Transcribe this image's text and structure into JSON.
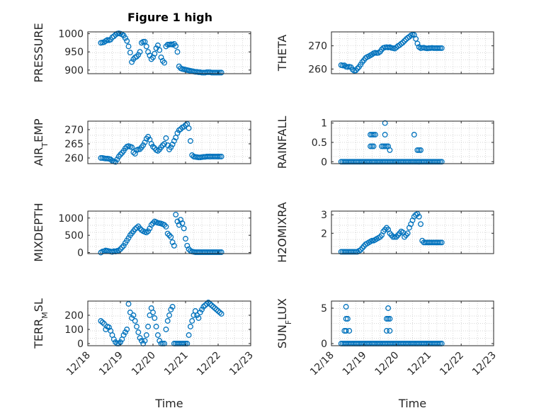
{
  "figure": {
    "title": "Figure 1 high"
  },
  "chart_data": [
    {
      "type": "scatter",
      "ylabel": "PRESSURE",
      "ylabel_sub": "",
      "ylim": [
        890,
        1005
      ],
      "yticks": [
        900,
        950,
        1000
      ],
      "xticks": [],
      "xlim": [
        0,
        5
      ],
      "grid": true,
      "x": [
        0.4,
        0.45,
        0.5,
        0.55,
        0.6,
        0.65,
        0.7,
        0.75,
        0.8,
        0.85,
        0.9,
        0.95,
        1.0,
        1.05,
        1.1,
        1.15,
        1.2,
        1.25,
        1.3,
        1.35,
        1.4,
        1.45,
        1.5,
        1.55,
        1.6,
        1.65,
        1.7,
        1.75,
        1.8,
        1.85,
        1.9,
        1.95,
        2.0,
        2.05,
        2.1,
        2.15,
        2.2,
        2.25,
        2.3,
        2.35,
        2.4,
        2.45,
        2.5,
        2.55,
        2.6,
        2.65,
        2.7,
        2.75,
        2.8,
        2.85,
        2.9,
        2.95,
        3.0,
        3.05,
        3.1,
        3.15,
        3.2,
        3.25,
        3.3,
        3.35,
        3.4,
        3.45,
        3.5,
        3.55,
        3.6,
        3.65,
        3.7,
        3.75,
        3.8,
        3.85,
        3.9,
        3.95,
        4.0,
        4.05,
        4.1
      ],
      "y": [
        975,
        976,
        977,
        980,
        983,
        982,
        984,
        990,
        993,
        997,
        1000,
        1001,
        1000,
        998,
        995,
        988,
        980,
        965,
        948,
        922,
        930,
        935,
        937,
        942,
        950,
        975,
        978,
        978,
        965,
        950,
        940,
        930,
        935,
        945,
        960,
        968,
        955,
        935,
        925,
        920,
        965,
        970,
        970,
        971,
        970,
        972,
        966,
        950,
        910,
        905,
        903,
        902,
        901,
        900,
        899,
        898,
        897,
        896,
        895,
        895,
        894,
        894,
        893,
        893,
        893,
        894,
        894,
        894,
        893,
        893,
        893,
        893,
        893,
        893,
        893
      ]
    },
    {
      "type": "scatter",
      "ylabel": "THETA",
      "ylabel_sub": "",
      "ylim": [
        258,
        276
      ],
      "yticks": [
        260,
        270
      ],
      "xticks": [],
      "xlim": [
        0,
        5
      ],
      "grid": true,
      "x": [
        0.3,
        0.35,
        0.4,
        0.45,
        0.5,
        0.55,
        0.6,
        0.65,
        0.7,
        0.75,
        0.8,
        0.85,
        0.9,
        0.95,
        1.0,
        1.05,
        1.1,
        1.15,
        1.2,
        1.25,
        1.3,
        1.35,
        1.4,
        1.45,
        1.5,
        1.55,
        1.6,
        1.65,
        1.7,
        1.75,
        1.8,
        1.85,
        1.9,
        1.95,
        2.0,
        2.05,
        2.1,
        2.15,
        2.2,
        2.25,
        2.3,
        2.35,
        2.4,
        2.45,
        2.5,
        2.55,
        2.6,
        2.65,
        2.7,
        2.75,
        2.8,
        2.85,
        2.9,
        2.95,
        3.0,
        3.05,
        3.1,
        3.15,
        3.2,
        3.25,
        3.3,
        3.35,
        3.4
      ],
      "y": [
        261.7,
        261.5,
        261.6,
        261.0,
        260.9,
        261.0,
        260.8,
        259.8,
        259.3,
        259.4,
        260.2,
        260.9,
        261.9,
        263.0,
        263.8,
        264.7,
        265.2,
        265.5,
        265.9,
        266.3,
        266.8,
        267.0,
        266.9,
        267.0,
        267.5,
        268.4,
        269.1,
        269.3,
        269.4,
        269.3,
        269.4,
        269.1,
        269.0,
        268.8,
        269.3,
        269.9,
        270.3,
        270.9,
        271.4,
        272.1,
        272.8,
        273.4,
        273.9,
        274.5,
        274.8,
        274.7,
        273.0,
        271.0,
        269.5,
        269.0,
        269.1,
        269.2,
        269.0,
        268.9,
        269.0,
        269.0,
        269.1,
        269.0,
        269.0,
        269.0,
        269.0,
        269.0,
        269.0
      ]
    },
    {
      "type": "scatter",
      "ylabel": "AIR",
      "ylabel_sub": "T",
      "ylabel_rest": "EMP",
      "ylim": [
        258,
        273
      ],
      "yticks": [
        260,
        265,
        270
      ],
      "xticks": [],
      "xlim": [
        0,
        5
      ],
      "grid": true,
      "x": [
        0.4,
        0.45,
        0.5,
        0.55,
        0.6,
        0.65,
        0.7,
        0.75,
        0.8,
        0.85,
        0.9,
        0.95,
        1.0,
        1.05,
        1.1,
        1.15,
        1.2,
        1.25,
        1.3,
        1.35,
        1.4,
        1.45,
        1.5,
        1.55,
        1.6,
        1.65,
        1.7,
        1.75,
        1.8,
        1.85,
        1.9,
        1.95,
        2.0,
        2.05,
        2.1,
        2.15,
        2.2,
        2.25,
        2.3,
        2.35,
        2.4,
        2.45,
        2.5,
        2.55,
        2.6,
        2.65,
        2.7,
        2.75,
        2.8,
        2.85,
        2.9,
        2.95,
        3.0,
        3.05,
        3.1,
        3.15,
        3.2,
        3.25,
        3.3,
        3.35,
        3.4,
        3.45,
        3.5,
        3.55,
        3.6,
        3.65,
        3.7,
        3.75,
        3.8,
        3.85,
        3.9,
        3.95,
        4.0,
        4.05,
        4.1
      ],
      "y": [
        260.0,
        260.0,
        259.9,
        259.8,
        259.8,
        259.7,
        259.5,
        259.0,
        258.8,
        258.6,
        259.5,
        260.5,
        261.2,
        261.8,
        262.5,
        263.4,
        264.0,
        264.2,
        264.0,
        263.8,
        262.0,
        261.5,
        262.8,
        263.0,
        263.1,
        263.8,
        264.5,
        265.5,
        266.8,
        267.5,
        266.5,
        265.0,
        264.0,
        263.5,
        262.8,
        262.5,
        263.0,
        263.8,
        264.5,
        265.0,
        267.0,
        264.5,
        263.0,
        263.8,
        264.8,
        266.0,
        267.2,
        268.8,
        269.8,
        270.2,
        270.8,
        271.0,
        271.6,
        272.0,
        270.5,
        266.0,
        261.0,
        260.5,
        260.4,
        260.3,
        260.2,
        260.2,
        260.3,
        260.4,
        260.4,
        260.5,
        260.5,
        260.5,
        260.5,
        260.5,
        260.5,
        260.5,
        260.5,
        260.5,
        260.5
      ]
    },
    {
      "type": "scatter",
      "ylabel": "RAINFALL",
      "ylabel_sub": "",
      "ylim": [
        -0.05,
        1.05
      ],
      "yticks": [
        0,
        0.5,
        1
      ],
      "xticks": [],
      "xlim": [
        0,
        5
      ],
      "grid": true,
      "x": [
        0.3,
        0.35,
        0.4,
        0.45,
        0.5,
        0.55,
        0.6,
        0.65,
        0.7,
        0.75,
        0.8,
        0.85,
        0.9,
        0.95,
        1.0,
        1.05,
        1.1,
        1.15,
        1.2,
        1.25,
        1.3,
        1.35,
        1.4,
        1.45,
        1.5,
        1.55,
        1.6,
        1.65,
        1.7,
        1.75,
        1.8,
        1.85,
        1.9,
        1.95,
        2.0,
        2.05,
        2.1,
        2.15,
        2.2,
        2.25,
        2.3,
        2.35,
        2.4,
        2.45,
        2.5,
        2.55,
        2.6,
        2.65,
        2.7,
        2.75,
        2.8,
        2.85,
        2.9,
        2.95,
        3.0,
        3.05,
        3.1,
        3.15,
        3.2,
        3.25,
        3.3,
        3.35,
        3.4,
        1.2,
        1.25,
        1.3,
        1.2,
        1.25,
        1.3,
        1.35,
        1.55,
        1.6,
        1.65,
        1.7,
        1.75,
        1.8,
        1.65,
        1.65,
        2.55,
        2.65,
        2.7,
        2.75,
        2.7
      ],
      "y": [
        0,
        0,
        0,
        0,
        0,
        0,
        0,
        0,
        0,
        0,
        0,
        0,
        0,
        0,
        0,
        0,
        0,
        0,
        0,
        0,
        0,
        0,
        0,
        0,
        0,
        0,
        0,
        0,
        0,
        0,
        0,
        0,
        0,
        0,
        0,
        0,
        0,
        0,
        0,
        0,
        0,
        0,
        0,
        0,
        0,
        0,
        0,
        0,
        0,
        0,
        0,
        0,
        0,
        0,
        0,
        0,
        0,
        0,
        0,
        0,
        0,
        0,
        0,
        0.4,
        0.4,
        0.4,
        0.7,
        0.7,
        0.7,
        0.7,
        0.4,
        0.4,
        0.4,
        0.4,
        0.4,
        0.3,
        0.7,
        1.0,
        0.7,
        0.3,
        0.3,
        0.3,
        0
      ]
    },
    {
      "type": "scatter",
      "ylabel": "MIXDEPTH",
      "ylabel_sub": "",
      "ylim": [
        -30,
        1200
      ],
      "yticks": [
        0,
        500,
        1000
      ],
      "xticks": [],
      "xlim": [
        0,
        5
      ],
      "grid": true,
      "x": [
        0.4,
        0.45,
        0.5,
        0.55,
        0.6,
        0.65,
        0.7,
        0.75,
        0.8,
        0.85,
        0.9,
        0.95,
        1.0,
        1.05,
        1.1,
        1.15,
        1.2,
        1.25,
        1.3,
        1.35,
        1.4,
        1.45,
        1.5,
        1.55,
        1.6,
        1.65,
        1.7,
        1.75,
        1.8,
        1.85,
        1.9,
        1.95,
        2.0,
        2.05,
        2.1,
        2.15,
        2.2,
        2.25,
        2.3,
        2.35,
        2.4,
        2.45,
        2.5,
        2.55,
        2.6,
        2.65,
        2.7,
        2.75,
        2.8,
        2.85,
        2.9,
        2.95,
        3.0,
        3.05,
        3.1,
        3.15,
        3.2,
        3.25,
        3.3,
        3.35,
        3.4,
        3.45,
        3.5,
        3.55,
        3.6,
        3.65,
        3.7,
        3.75,
        3.8,
        3.85,
        3.9,
        3.95,
        4.0,
        4.05,
        4.1
      ],
      "y": [
        0,
        30,
        40,
        60,
        50,
        40,
        30,
        20,
        40,
        30,
        50,
        60,
        100,
        150,
        200,
        280,
        350,
        420,
        500,
        560,
        620,
        680,
        720,
        760,
        700,
        650,
        620,
        600,
        580,
        620,
        700,
        800,
        850,
        900,
        880,
        860,
        850,
        840,
        820,
        800,
        750,
        550,
        500,
        450,
        300,
        200,
        1100,
        900,
        800,
        950,
        850,
        700,
        400,
        200,
        100,
        50,
        30,
        20,
        10,
        10,
        10,
        10,
        10,
        10,
        10,
        10,
        10,
        10,
        10,
        10,
        10,
        10,
        10,
        10,
        10
      ]
    },
    {
      "type": "scatter",
      "ylabel": "H2OMIXRA",
      "ylabel_sub": "",
      "ylim": [
        0.9,
        3.2
      ],
      "yticks": [
        2,
        3
      ],
      "xticks": [],
      "xlim": [
        0,
        5
      ],
      "grid": true,
      "x": [
        0.3,
        0.35,
        0.4,
        0.45,
        0.5,
        0.55,
        0.6,
        0.65,
        0.7,
        0.75,
        0.8,
        0.85,
        0.9,
        0.95,
        1.0,
        1.05,
        1.1,
        1.15,
        1.2,
        1.25,
        1.3,
        1.35,
        1.4,
        1.45,
        1.5,
        1.55,
        1.6,
        1.65,
        1.7,
        1.75,
        1.8,
        1.85,
        1.9,
        1.95,
        2.0,
        2.05,
        2.1,
        2.15,
        2.2,
        2.25,
        2.3,
        2.35,
        2.4,
        2.45,
        2.5,
        2.55,
        2.6,
        2.65,
        2.7,
        2.75,
        2.8,
        2.85,
        2.9,
        2.95,
        3.0,
        3.05,
        3.1,
        3.15,
        3.2,
        3.25,
        3.3,
        3.35,
        3.4
      ],
      "y": [
        1.0,
        1.0,
        1.0,
        1.0,
        1.0,
        1.0,
        1.0,
        1.0,
        1.0,
        1.0,
        1.0,
        1.05,
        1.1,
        1.2,
        1.3,
        1.4,
        1.45,
        1.5,
        1.55,
        1.6,
        1.6,
        1.65,
        1.7,
        1.75,
        1.8,
        1.9,
        2.1,
        2.2,
        2.3,
        2.2,
        2.0,
        1.9,
        1.8,
        1.8,
        1.8,
        1.9,
        2.0,
        2.1,
        2.05,
        1.8,
        1.9,
        2.0,
        2.3,
        2.5,
        2.7,
        2.9,
        3.0,
        3.05,
        2.9,
        2.5,
        1.6,
        1.5,
        1.5,
        1.5,
        1.5,
        1.5,
        1.5,
        1.5,
        1.5,
        1.5,
        1.5,
        1.5,
        1.5
      ]
    },
    {
      "type": "scatter",
      "ylabel": "TERR",
      "ylabel_sub": "M",
      "ylabel_rest": "SL",
      "ylim": [
        -15,
        300
      ],
      "yticks": [
        0,
        100,
        200
      ],
      "xticks": [
        "12/18",
        "12/19",
        "12/20",
        "12/21",
        "12/22",
        "12/23"
      ],
      "xlim": [
        0,
        5
      ],
      "xlabel": "Time",
      "grid": true,
      "x": [
        0.4,
        0.45,
        0.5,
        0.55,
        0.6,
        0.65,
        0.7,
        0.75,
        0.8,
        0.85,
        0.9,
        0.95,
        1.0,
        1.05,
        1.1,
        1.15,
        1.2,
        1.25,
        1.3,
        1.35,
        1.4,
        1.45,
        1.5,
        1.55,
        1.6,
        1.65,
        1.7,
        1.75,
        1.8,
        1.85,
        1.9,
        1.95,
        2.0,
        2.05,
        2.1,
        2.15,
        2.2,
        2.25,
        2.3,
        2.35,
        2.4,
        2.45,
        2.5,
        2.55,
        2.6,
        2.65,
        2.7,
        2.75,
        2.8,
        2.85,
        2.9,
        2.95,
        3.0,
        3.05,
        3.1,
        3.15,
        3.2,
        3.25,
        3.3,
        3.35,
        3.4,
        3.45,
        3.5,
        3.55,
        3.6,
        3.65,
        3.7,
        3.75,
        3.8,
        3.85,
        3.9,
        3.95,
        4.0,
        4.05,
        4.1
      ],
      "y": [
        160,
        150,
        140,
        100,
        120,
        115,
        90,
        60,
        30,
        10,
        0,
        0,
        10,
        30,
        60,
        80,
        100,
        280,
        220,
        180,
        200,
        160,
        120,
        80,
        40,
        20,
        0,
        20,
        60,
        120,
        200,
        250,
        220,
        180,
        120,
        60,
        20,
        0,
        0,
        0,
        100,
        160,
        200,
        240,
        260,
        0,
        0,
        0,
        0,
        0,
        0,
        0,
        0,
        0,
        60,
        120,
        160,
        200,
        230,
        200,
        180,
        220,
        240,
        260,
        270,
        280,
        290,
        280,
        270,
        260,
        250,
        240,
        230,
        220,
        210
      ]
    },
    {
      "type": "scatter",
      "ylabel": "SUN",
      "ylabel_sub": "F",
      "ylabel_rest": "LUX",
      "ylim": [
        -0.3,
        6
      ],
      "yticks": [
        0,
        5
      ],
      "xticks": [
        "12/18",
        "12/19",
        "12/20",
        "12/21",
        "12/22",
        "12/23"
      ],
      "xlim": [
        0,
        5
      ],
      "xlabel": "Time",
      "grid": true,
      "x": [
        0.3,
        0.35,
        0.4,
        0.45,
        0.5,
        0.55,
        0.6,
        0.65,
        0.7,
        0.75,
        0.8,
        0.85,
        0.9,
        0.95,
        1.0,
        1.05,
        1.1,
        1.15,
        1.2,
        1.25,
        1.3,
        1.35,
        1.4,
        1.45,
        1.5,
        1.55,
        1.6,
        1.65,
        1.7,
        1.75,
        1.8,
        1.85,
        1.9,
        1.95,
        2.0,
        2.05,
        2.1,
        2.15,
        2.2,
        2.25,
        2.3,
        2.35,
        2.4,
        2.45,
        2.5,
        2.55,
        2.6,
        2.65,
        2.7,
        2.75,
        2.8,
        2.85,
        2.9,
        2.95,
        3.0,
        3.05,
        3.1,
        3.15,
        3.2,
        3.25,
        3.3,
        3.35,
        3.4,
        0.4,
        0.45,
        0.45,
        0.45,
        0.5,
        0.55,
        1.7,
        1.7,
        1.75,
        1.8,
        1.75,
        1.8
      ],
      "y": [
        0,
        0,
        0,
        0,
        0,
        0,
        0,
        0,
        0,
        0,
        0,
        0,
        0,
        0,
        0,
        0,
        0,
        0,
        0,
        0,
        0,
        0,
        0,
        0,
        0,
        0,
        0,
        0,
        0,
        0,
        0,
        0,
        0,
        0,
        0,
        0,
        0,
        0,
        0,
        0,
        0,
        0,
        0,
        0,
        0,
        0,
        0,
        0,
        0,
        0,
        0,
        0,
        0,
        0,
        0,
        0,
        0,
        0,
        0,
        0,
        0,
        0,
        0,
        1.8,
        1.8,
        3.5,
        5.2,
        3.5,
        1.8,
        1.8,
        3.5,
        5.0,
        3.5,
        3.5,
        1.8
      ]
    }
  ]
}
